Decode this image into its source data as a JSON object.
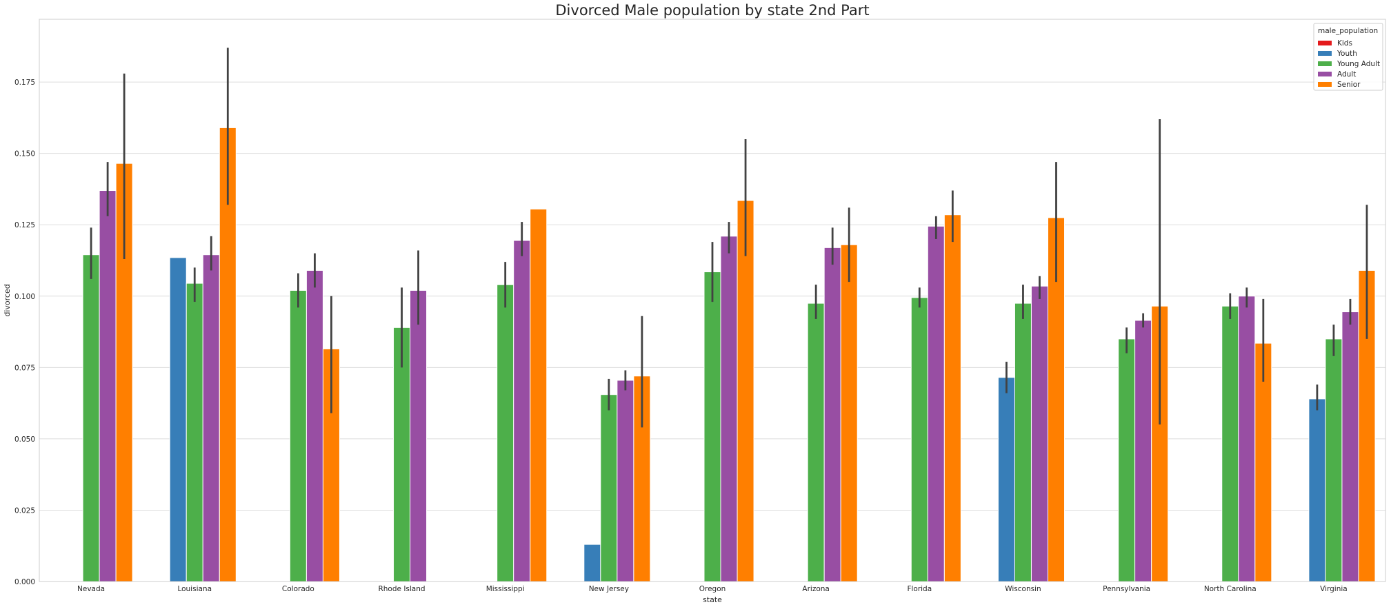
{
  "chart_data": {
    "type": "bar",
    "title": "Divorced Male population by state 2nd Part",
    "xlabel": "state",
    "ylabel": "divorced",
    "ylim": [
      0,
      0.197
    ],
    "yticks": [
      "0.000",
      "0.025",
      "0.050",
      "0.075",
      "0.100",
      "0.125",
      "0.150",
      "0.175"
    ],
    "grid": true,
    "legend": {
      "title": "male_population",
      "placement": "top-right"
    },
    "categories": [
      "Nevada",
      "Louisiana",
      "Colorado",
      "Rhode Island",
      "Mississippi",
      "New Jersey",
      "Oregon",
      "Arizona",
      "Florida",
      "Wisconsin",
      "Pennsylvania",
      "North Carolina",
      "Virginia"
    ],
    "series": [
      {
        "name": "Kids",
        "color": "#e41a1c",
        "values": [
          null,
          null,
          null,
          null,
          null,
          null,
          null,
          null,
          null,
          null,
          null,
          null,
          null
        ],
        "err": [
          null,
          null,
          null,
          null,
          null,
          null,
          null,
          null,
          null,
          null,
          null,
          null,
          null
        ]
      },
      {
        "name": "Youth",
        "color": "#377eb8",
        "values": [
          null,
          0.1135,
          null,
          null,
          null,
          0.013,
          null,
          null,
          null,
          0.0715,
          null,
          null,
          0.064
        ],
        "err": [
          null,
          null,
          null,
          null,
          null,
          null,
          null,
          null,
          null,
          [
            0.066,
            0.077
          ],
          null,
          null,
          [
            0.06,
            0.069
          ]
        ]
      },
      {
        "name": "Young Adult",
        "color": "#4daf4a",
        "values": [
          0.1145,
          0.1045,
          0.102,
          0.089,
          0.104,
          0.0655,
          0.1085,
          0.0975,
          0.0995,
          0.0975,
          0.085,
          0.0965,
          0.085
        ],
        "err": [
          [
            0.106,
            0.124
          ],
          [
            0.098,
            0.11
          ],
          [
            0.096,
            0.108
          ],
          [
            0.075,
            0.103
          ],
          [
            0.096,
            0.112
          ],
          [
            0.06,
            0.071
          ],
          [
            0.098,
            0.119
          ],
          [
            0.092,
            0.104
          ],
          [
            0.096,
            0.103
          ],
          [
            0.092,
            0.104
          ],
          [
            0.08,
            0.089
          ],
          [
            0.092,
            0.101
          ],
          [
            0.079,
            0.09
          ]
        ]
      },
      {
        "name": "Adult",
        "color": "#984ea3",
        "values": [
          0.137,
          0.1145,
          0.109,
          0.102,
          0.1195,
          0.0705,
          0.121,
          0.117,
          0.1245,
          0.1035,
          0.0915,
          0.1,
          0.0945
        ],
        "err": [
          [
            0.128,
            0.147
          ],
          [
            0.109,
            0.121
          ],
          [
            0.103,
            0.115
          ],
          [
            0.09,
            0.116
          ],
          [
            0.114,
            0.126
          ],
          [
            0.067,
            0.074
          ],
          [
            0.115,
            0.126
          ],
          [
            0.111,
            0.124
          ],
          [
            0.12,
            0.128
          ],
          [
            0.099,
            0.107
          ],
          [
            0.089,
            0.094
          ],
          [
            0.096,
            0.103
          ],
          [
            0.09,
            0.099
          ]
        ]
      },
      {
        "name": "Senior",
        "color": "#ff7f00",
        "values": [
          0.1465,
          0.159,
          0.0815,
          null,
          0.1305,
          0.072,
          0.1335,
          0.118,
          0.1285,
          0.1275,
          0.0965,
          0.0835,
          0.109
        ],
        "err": [
          [
            0.113,
            0.178
          ],
          [
            0.132,
            0.187
          ],
          [
            0.059,
            0.1
          ],
          null,
          null,
          [
            0.054,
            0.093
          ],
          [
            0.114,
            0.155
          ],
          [
            0.105,
            0.131
          ],
          [
            0.119,
            0.137
          ],
          [
            0.105,
            0.147
          ],
          [
            0.055,
            0.162
          ],
          [
            0.07,
            0.099
          ],
          [
            0.085,
            0.132
          ]
        ]
      }
    ]
  }
}
